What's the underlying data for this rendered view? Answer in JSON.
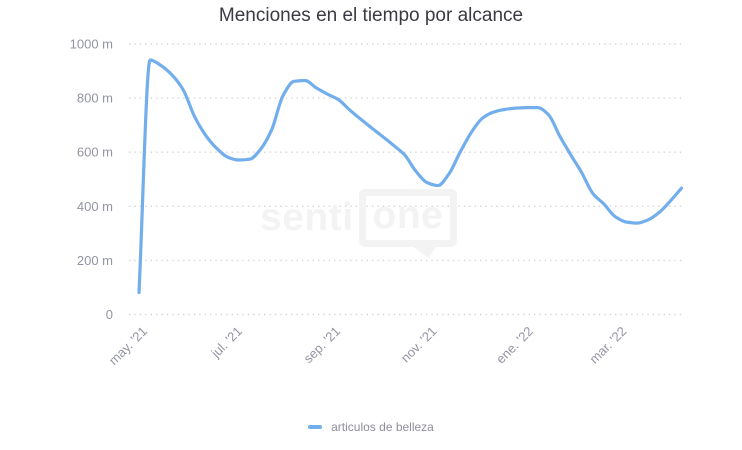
{
  "title": "Menciones en el tiempo por alcance",
  "watermark": {
    "part1": "senti",
    "part2": "one"
  },
  "legend": {
    "label": "articulos de belleza"
  },
  "colors": {
    "series_line": "#73aeec",
    "grid_dots": "#d5d5da",
    "axis_labels": "#9394a4",
    "title_text": "#3a3a42",
    "legend_text": "#8e8e9c",
    "watermark": "#f3f3f4",
    "background": "#ffffff"
  },
  "chart_data": {
    "type": "line",
    "title": "Menciones en el tiempo por alcance",
    "xlabel": "",
    "ylabel": "",
    "value_suffix": "m",
    "ylim": [
      0,
      1000
    ],
    "grid": "horizontal-dotted",
    "legend_position": "bottom",
    "x_unit": "date",
    "dates": [
      "2021-05-02",
      "2021-05-09",
      "2021-05-16",
      "2021-05-23",
      "2021-05-30",
      "2021-06-06",
      "2021-06-13",
      "2021-06-20",
      "2021-06-27",
      "2021-07-04",
      "2021-07-11",
      "2021-07-18",
      "2021-07-25",
      "2021-08-01",
      "2021-08-08",
      "2021-08-15",
      "2021-08-22",
      "2021-08-29",
      "2021-09-05",
      "2021-09-12",
      "2021-09-19",
      "2021-09-26",
      "2021-10-03",
      "2021-10-10",
      "2021-10-17",
      "2021-10-24",
      "2021-10-31",
      "2021-11-07",
      "2021-11-14",
      "2021-11-21",
      "2021-11-28",
      "2021-12-05",
      "2021-12-12",
      "2021-12-19",
      "2021-12-26",
      "2022-01-02",
      "2022-01-09",
      "2022-01-16",
      "2022-01-23",
      "2022-01-30",
      "2022-02-06",
      "2022-02-13",
      "2022-02-20",
      "2022-02-27",
      "2022-03-06",
      "2022-03-13",
      "2022-03-20",
      "2022-03-27",
      "2022-04-03",
      "2022-04-10"
    ],
    "series": [
      {
        "name": "articulos de belleza",
        "color": "#73aeec",
        "values": [
          81,
          941,
          920,
          885,
          830,
          733,
          664,
          615,
          582,
          571,
          574,
          612,
          685,
          808,
          862,
          865,
          838,
          815,
          795,
          757,
          723,
          690,
          658,
          625,
          590,
          530,
          488,
          477,
          520,
          600,
          672,
          725,
          748,
          758,
          763,
          765,
          765,
          738,
          660,
          590,
          523,
          447,
          408,
          362,
          342,
          338,
          350,
          378,
          420,
          467
        ]
      }
    ],
    "y_ticks": [
      {
        "value": 0,
        "label": "0"
      },
      {
        "value": 200,
        "label": "200 m"
      },
      {
        "value": 400,
        "label": "400 m"
      },
      {
        "value": 600,
        "label": "600 m"
      },
      {
        "value": 800,
        "label": "800 m"
      },
      {
        "value": 1000,
        "label": "1000 m"
      }
    ],
    "x_ticks": [
      {
        "date": "2021-05-02",
        "label": "may. '21"
      },
      {
        "date": "2021-07-01",
        "label": "jul. '21"
      },
      {
        "date": "2021-09-01",
        "label": "sep. '21"
      },
      {
        "date": "2021-11-01",
        "label": "nov. '21"
      },
      {
        "date": "2022-01-01",
        "label": "ene. '22"
      },
      {
        "date": "2022-03-01",
        "label": "mar. '22"
      }
    ]
  }
}
